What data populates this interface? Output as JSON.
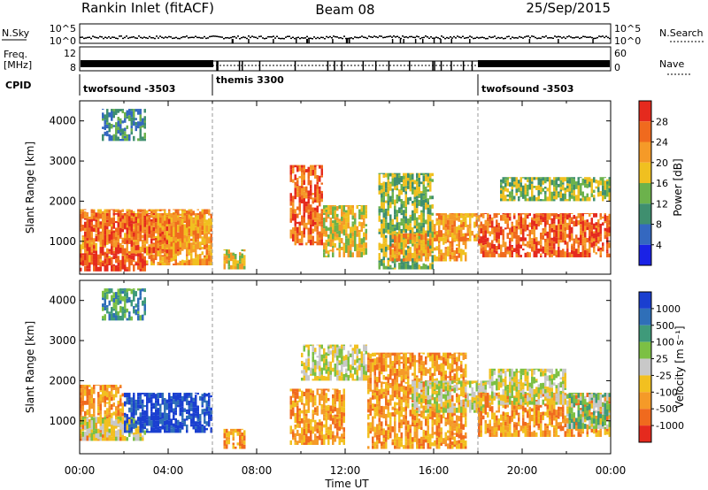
{
  "header": {
    "radar": "Rankin Inlet (fitACF)",
    "beam": "Beam 08",
    "date": "25/Sep/2015"
  },
  "strips": {
    "nsky_label": "N.Sky",
    "nsky_ticks": [
      "10^5",
      "10^0"
    ],
    "nsearch_label": "N.Search",
    "nsearch_ticks": [
      "10^5",
      "10^0"
    ],
    "freq_label_1": "Freq.",
    "freq_label_2": "[MHz]",
    "freq_ticks": [
      "12",
      "8"
    ],
    "nave_label": "Nave",
    "nave_ticks": [
      "60",
      "0"
    ],
    "cpid_label": "CPID"
  },
  "cpid_segments": [
    {
      "name": "twofsound",
      "id": "-3503",
      "start_hour": 0,
      "end_hour": 6
    },
    {
      "name": "themis",
      "id": "3300",
      "start_hour": 6,
      "end_hour": 18
    },
    {
      "name": "twofsound",
      "id": "-3503",
      "start_hour": 18,
      "end_hour": 24
    }
  ],
  "axes": {
    "ylabel": "Slant Range [km]",
    "yticks": [
      "1000",
      "2000",
      "3000",
      "4000"
    ],
    "xlabel": "Time UT",
    "xticks": [
      "00:00",
      "04:00",
      "08:00",
      "12:00",
      "16:00",
      "20:00",
      "00:00"
    ]
  },
  "power_colorbar": {
    "label": "Power [dB]",
    "ticks": [
      "4",
      "8",
      "12",
      "16",
      "20",
      "24",
      "28"
    ],
    "colors": [
      "#1a22e6",
      "#3468c0",
      "#3f8f6f",
      "#6cb24c",
      "#f0c020",
      "#f59a28",
      "#f06a1e",
      "#e52a1e"
    ]
  },
  "velocity_colorbar": {
    "label": "Velocity [m s⁻¹]",
    "ticks": [
      "1000",
      "500",
      "100",
      "25",
      "-25",
      "-100",
      "-500",
      "-1000"
    ],
    "colors": [
      "#1a3fd0",
      "#2f6fb8",
      "#3f9a7a",
      "#7cc044",
      "#c8c8c8",
      "#f2c020",
      "#f59a28",
      "#f06a1e",
      "#e52a1e"
    ]
  },
  "chart_data": [
    {
      "type": "heatmap",
      "title": "Power",
      "x_range_hours": [
        0,
        24
      ],
      "ylim": [
        180,
        4500
      ],
      "xlabel": "Time UT",
      "ylabel": "Slant Range [km]",
      "colorbar": "Power [dB]",
      "colorbar_range": [
        0,
        30
      ],
      "regions": [
        {
          "t0": 0.0,
          "t1": 6.0,
          "r0": 400,
          "r1": 1800,
          "level": 5
        },
        {
          "t0": 0.0,
          "t1": 3.0,
          "r0": 250,
          "r1": 700,
          "level": 7
        },
        {
          "t0": 0.2,
          "t1": 4.5,
          "r0": 700,
          "r1": 1700,
          "level": 6
        },
        {
          "t0": 3.5,
          "t1": 6.0,
          "r0": 800,
          "r1": 1700,
          "level": 5
        },
        {
          "t0": 1.0,
          "t1": 3.0,
          "r0": 3500,
          "r1": 4300,
          "level": 2
        },
        {
          "t0": 6.5,
          "t1": 7.5,
          "r0": 300,
          "r1": 800,
          "level": 4
        },
        {
          "t0": 9.5,
          "t1": 11.0,
          "r0": 900,
          "r1": 2900,
          "level": 6
        },
        {
          "t0": 11.0,
          "t1": 13.0,
          "r0": 600,
          "r1": 1900,
          "level": 4
        },
        {
          "t0": 13.5,
          "t1": 16.0,
          "r0": 300,
          "r1": 2700,
          "level": 3
        },
        {
          "t0": 14.0,
          "t1": 17.5,
          "r0": 500,
          "r1": 1200,
          "level": 5
        },
        {
          "t0": 16.0,
          "t1": 18.0,
          "r0": 1000,
          "r1": 1700,
          "level": 5
        },
        {
          "t0": 18.0,
          "t1": 24.0,
          "r0": 600,
          "r1": 1700,
          "level": 6
        },
        {
          "t0": 19.0,
          "t1": 24.0,
          "r0": 2000,
          "r1": 2600,
          "level": 3
        }
      ]
    },
    {
      "type": "heatmap",
      "title": "Velocity",
      "x_range_hours": [
        0,
        24
      ],
      "ylim": [
        180,
        4500
      ],
      "xlabel": "Time UT",
      "ylabel": "Slant Range [km]",
      "colorbar": "Velocity [m s⁻¹]",
      "colorbar_range": [
        -1000,
        1000
      ],
      "regions": [
        {
          "t0": 0.0,
          "t1": 2.0,
          "r0": 500,
          "r1": 1900,
          "level": 6
        },
        {
          "t0": 0.0,
          "t1": 3.0,
          "r0": 500,
          "r1": 1100,
          "level": 4
        },
        {
          "t0": 2.0,
          "t1": 6.0,
          "r0": 700,
          "r1": 1700,
          "level": 0
        },
        {
          "t0": 1.0,
          "t1": 3.0,
          "r0": 3500,
          "r1": 4300,
          "level": 2
        },
        {
          "t0": 6.5,
          "t1": 7.5,
          "r0": 300,
          "r1": 800,
          "level": 6
        },
        {
          "t0": 9.5,
          "t1": 12.0,
          "r0": 400,
          "r1": 1800,
          "level": 6
        },
        {
          "t0": 10.0,
          "t1": 13.0,
          "r0": 2000,
          "r1": 2900,
          "level": 4
        },
        {
          "t0": 13.0,
          "t1": 17.5,
          "r0": 300,
          "r1": 2700,
          "level": 6
        },
        {
          "t0": 15.0,
          "t1": 18.5,
          "r0": 1200,
          "r1": 2000,
          "level": 4
        },
        {
          "t0": 18.0,
          "t1": 24.0,
          "r0": 600,
          "r1": 1700,
          "level": 6
        },
        {
          "t0": 18.5,
          "t1": 22.0,
          "r0": 1400,
          "r1": 2300,
          "level": 4
        },
        {
          "t0": 22.0,
          "t1": 24.0,
          "r0": 800,
          "r1": 1700,
          "level": 3
        }
      ]
    }
  ]
}
